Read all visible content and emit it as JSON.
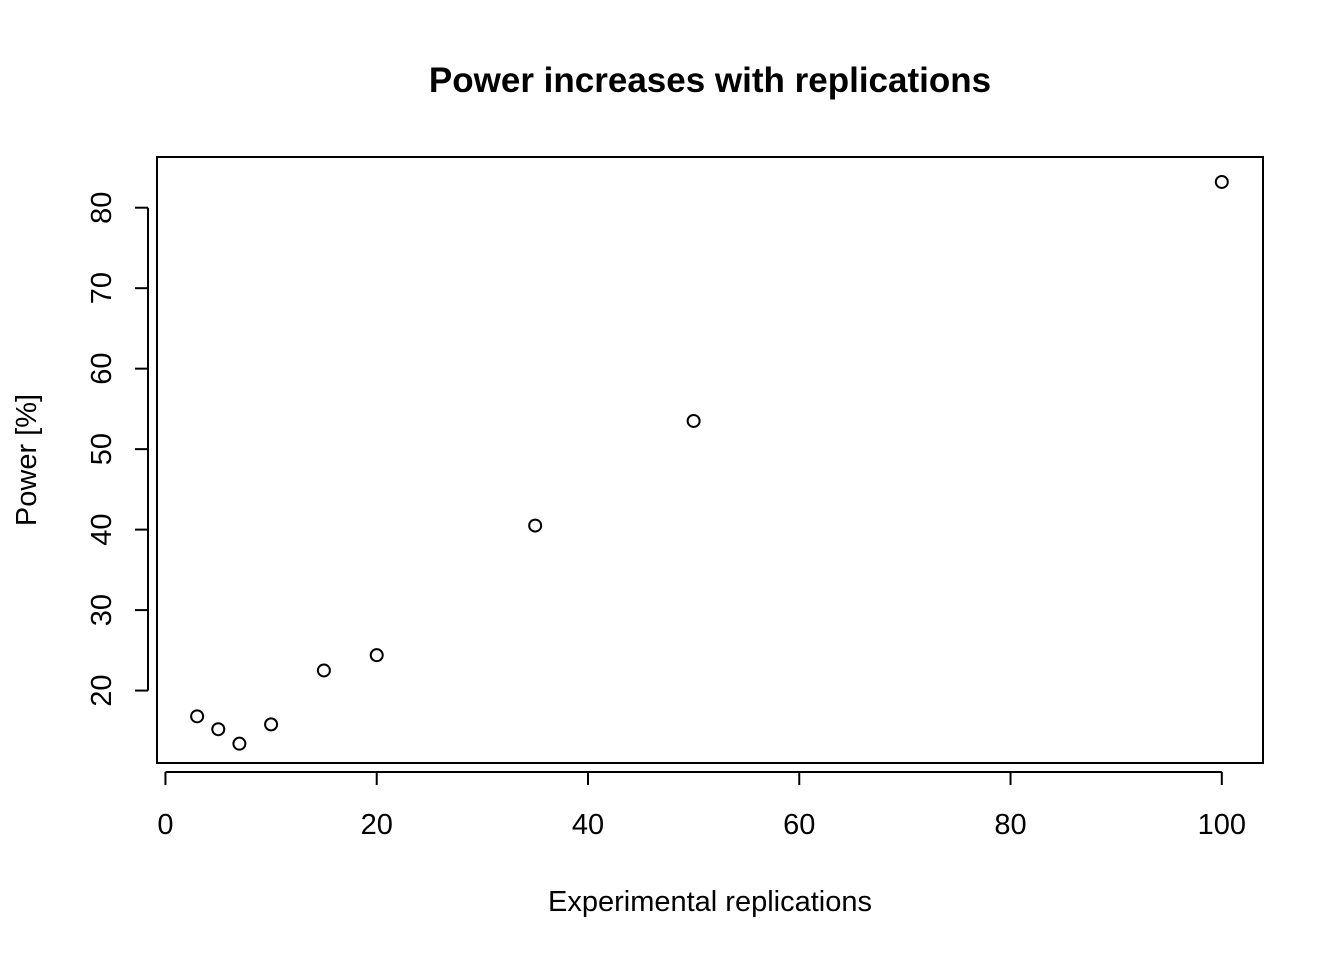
{
  "chart_data": {
    "type": "scatter",
    "title": "Power increases with replications",
    "xlabel": "Experimental replications",
    "ylabel": "Power [%]",
    "xlim": [
      -0.8,
      103.9
    ],
    "ylim": [
      11.0,
      86.3
    ],
    "xticks": [
      0,
      20,
      40,
      60,
      80,
      100
    ],
    "yticks": [
      20,
      30,
      40,
      50,
      60,
      70,
      80
    ],
    "grid": false,
    "legend": "none",
    "series": [
      {
        "x": [
          3,
          5,
          7,
          10,
          15,
          20,
          35,
          50,
          100
        ],
        "y": [
          16.8,
          15.2,
          13.4,
          15.8,
          22.5,
          24.4,
          40.5,
          53.5,
          83.2
        ]
      }
    ]
  }
}
